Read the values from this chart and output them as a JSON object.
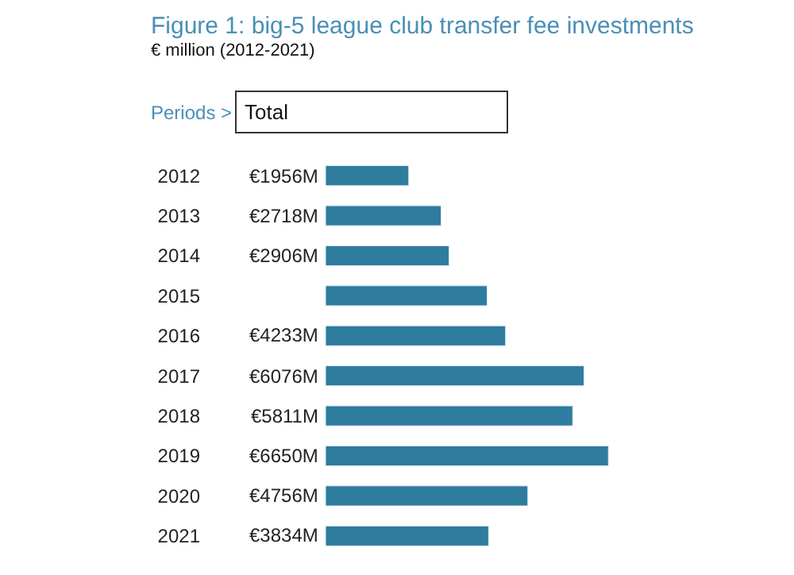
{
  "chart_data": {
    "type": "bar",
    "orientation": "horizontal",
    "title": "Figure 1: big-5 league club transfer fee investments",
    "subtitle": "€ million (2012-2021)",
    "annotations": [
      "Periods >",
      "Total"
    ],
    "categories": [
      "2012",
      "2013",
      "2014",
      "2015",
      "2016",
      "2017",
      "2018",
      "2019",
      "2020",
      "2021"
    ],
    "values": [
      1956,
      2718,
      2906,
      3800,
      4233,
      6076,
      5811,
      6650,
      4756,
      3834
    ],
    "value_labels": [
      "€1956M",
      "€2718M",
      "€2906M",
      null,
      "€4233M",
      "€6076M",
      "€5811M",
      "€6650M",
      "€4756M",
      "€3834M"
    ],
    "color": "#2e7d9e",
    "legend": false
  }
}
